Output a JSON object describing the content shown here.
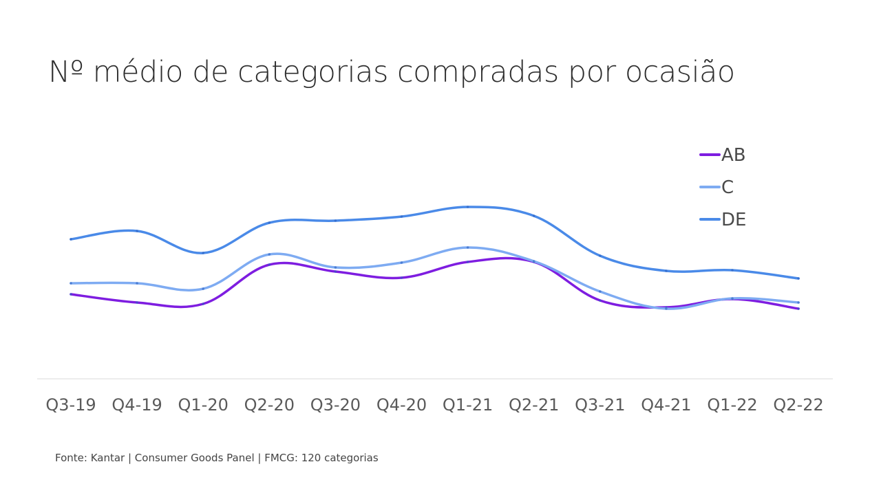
{
  "title": "Nº médio de categorias compradas por ocasião",
  "source": "Fonte: Kantar | Consumer Goods Panel | FMCG: 120 categorias",
  "chart_data": {
    "type": "line",
    "title": "Nº médio de categorias compradas por ocasião",
    "categories": [
      "Q3-19",
      "Q4-19",
      "Q1-20",
      "Q2-20",
      "Q3-20",
      "Q4-20",
      "Q1-21",
      "Q2-21",
      "Q3-21",
      "Q4-21",
      "Q1-22",
      "Q2-22"
    ],
    "ylim": [
      0,
      3.4
    ],
    "grid": false,
    "smooth": true,
    "legend_position": "top-right",
    "series": [
      {
        "name": "AB",
        "color": "#7e1de0",
        "values": [
          1.22,
          1.1,
          1.08,
          1.65,
          1.55,
          1.46,
          1.69,
          1.69,
          1.13,
          1.03,
          1.15,
          1.01
        ]
      },
      {
        "name": "C",
        "color": "#7eabf2",
        "values": [
          1.38,
          1.38,
          1.3,
          1.8,
          1.61,
          1.68,
          1.9,
          1.7,
          1.26,
          1.01,
          1.16,
          1.1
        ]
      },
      {
        "name": "DE",
        "color": "#4a8ae8",
        "values": [
          2.02,
          2.14,
          1.82,
          2.26,
          2.29,
          2.35,
          2.49,
          2.36,
          1.78,
          1.56,
          1.57,
          1.45
        ]
      }
    ]
  }
}
